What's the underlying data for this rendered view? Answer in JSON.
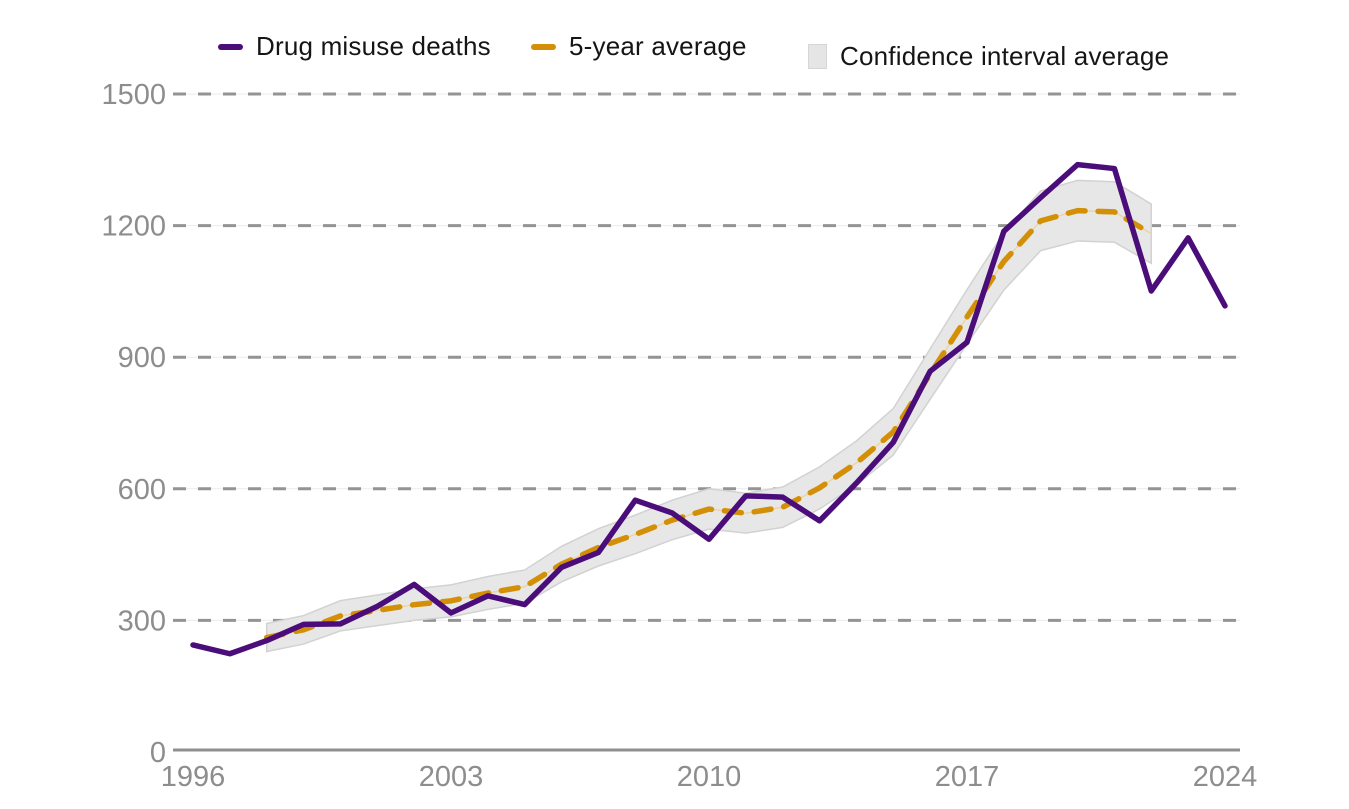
{
  "legend": {
    "items": [
      {
        "label": "Drug misuse deaths",
        "swatch": "dash",
        "color": "#4a0d7a"
      },
      {
        "label": "5-year average",
        "swatch": "dash",
        "color": "#d39007"
      },
      {
        "label": "Confidence interval average",
        "swatch": "square",
        "color": "#e5e5e5"
      }
    ]
  },
  "colors": {
    "deaths_line": "#4a0d7a",
    "average_line": "#d39007",
    "average_backing_line": "#ecd5a4",
    "ci_band_fill": "#e7e7e7",
    "ci_band_edge": "#d2d2d2",
    "gridline_dash": "#949494",
    "gridline_backing": "#ebebeb",
    "axis_line": "#8f8f8f",
    "tick_label": "#8d8d8d",
    "legend_text": "#151515"
  },
  "chart_data": {
    "type": "line",
    "title": "",
    "xlabel": "",
    "ylabel": "",
    "grid": "dashed-horizontal",
    "legend_position": "top",
    "x_axis": {
      "range": [
        1996,
        2024
      ],
      "ticks": [
        1996,
        2003,
        2010,
        2017,
        2024
      ]
    },
    "y_axis": {
      "range": [
        0,
        1500
      ],
      "ticks": [
        0,
        300,
        600,
        900,
        1200,
        1500
      ]
    },
    "x": [
      1996,
      1997,
      1998,
      1999,
      2000,
      2001,
      2002,
      2003,
      2004,
      2005,
      2006,
      2007,
      2008,
      2009,
      2010,
      2011,
      2012,
      2013,
      2014,
      2015,
      2016,
      2017,
      2018,
      2019,
      2020,
      2021,
      2022,
      2023,
      2024
    ],
    "series": [
      {
        "name": "Drug misuse deaths",
        "type": "line",
        "color": "#4a0d7a",
        "x_start": 1996,
        "values": [
          244,
          224,
          254,
          291,
          292,
          332,
          382,
          317,
          356,
          336,
          421,
          455,
          574,
          545,
          485,
          584,
          581,
          527,
          613,
          706,
          868,
          934,
          1187,
          1264,
          1339,
          1330,
          1051,
          1172,
          1017
        ]
      },
      {
        "name": "5-year average",
        "type": "dashed-line",
        "color": "#d39007",
        "x_start": 1998,
        "values": [
          261.0,
          278.6,
          310.2,
          322.8,
          335.8,
          344.6,
          362.4,
          377.0,
          428.4,
          466.2,
          496.0,
          528.6,
          553.8,
          544.4,
          558.0,
          602.2,
          659.0,
          729.6,
          861.6,
          991.8,
          1118.4,
          1210.8,
          1234.2,
          1231.2,
          1181.8
        ]
      },
      {
        "name": "Confidence interval average",
        "type": "band",
        "color": "#e7e7e7",
        "x_start": 1998,
        "lower": [
          229,
          246,
          276,
          288,
          300,
          308,
          325,
          339,
          388,
          424,
          452,
          484,
          508,
          499,
          512,
          554,
          609,
          677,
          804,
          930,
          1053,
          1143,
          1165,
          1162,
          1114
        ],
        "upper": [
          293,
          311,
          345,
          358,
          372,
          381,
          400,
          415,
          469,
          509,
          540,
          574,
          600,
          590,
          604,
          650,
          709,
          783,
          919,
          1054,
          1184,
          1279,
          1303,
          1300,
          1249
        ]
      }
    ]
  }
}
